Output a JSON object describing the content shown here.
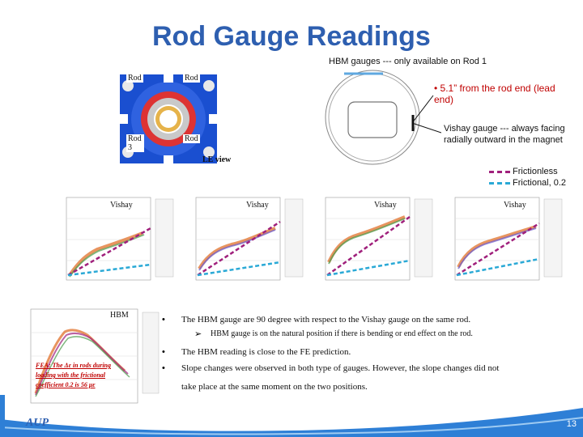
{
  "title": "Rod Gauge Readings",
  "hbm_note": "HBM gauges --- only available on Rod 1",
  "rod_labels": [
    "Rod",
    "Rod",
    "Rod 3",
    "Rod"
  ],
  "le_view": "LE view",
  "position_note": "5.1” from the rod end (lead end)",
  "vishay_note": "Vishay gauge --- always facing radially outward in the magnet",
  "legend": {
    "frictionless": "Frictionless",
    "frictional": "Frictional, 0.2",
    "frictionless_color": "#a0207c",
    "frictional_color": "#2aa9d6"
  },
  "plots": {
    "vishay_tags": [
      "Vishay",
      "Vishay",
      "Vishay",
      "Vishay"
    ],
    "hbm_tag": "HBM"
  },
  "bullets": [
    "The HBM gauge are 90 degree with respect to the Vishay gauge on the same rod.",
    "HBM gauge is on the natural position if there is bending or end effect on the rod.",
    "The HBM reading is close to the FE prediction.",
    "Slope changes were observed in both type of gauges. However, the slope changes did not",
    "take place at the same moment on the two positions."
  ],
  "fea_note": "FEA: The Δε in rods during loading with the frictional coefficient 0.2 is 56 με",
  "logo": "AUP",
  "page_number": "13"
}
